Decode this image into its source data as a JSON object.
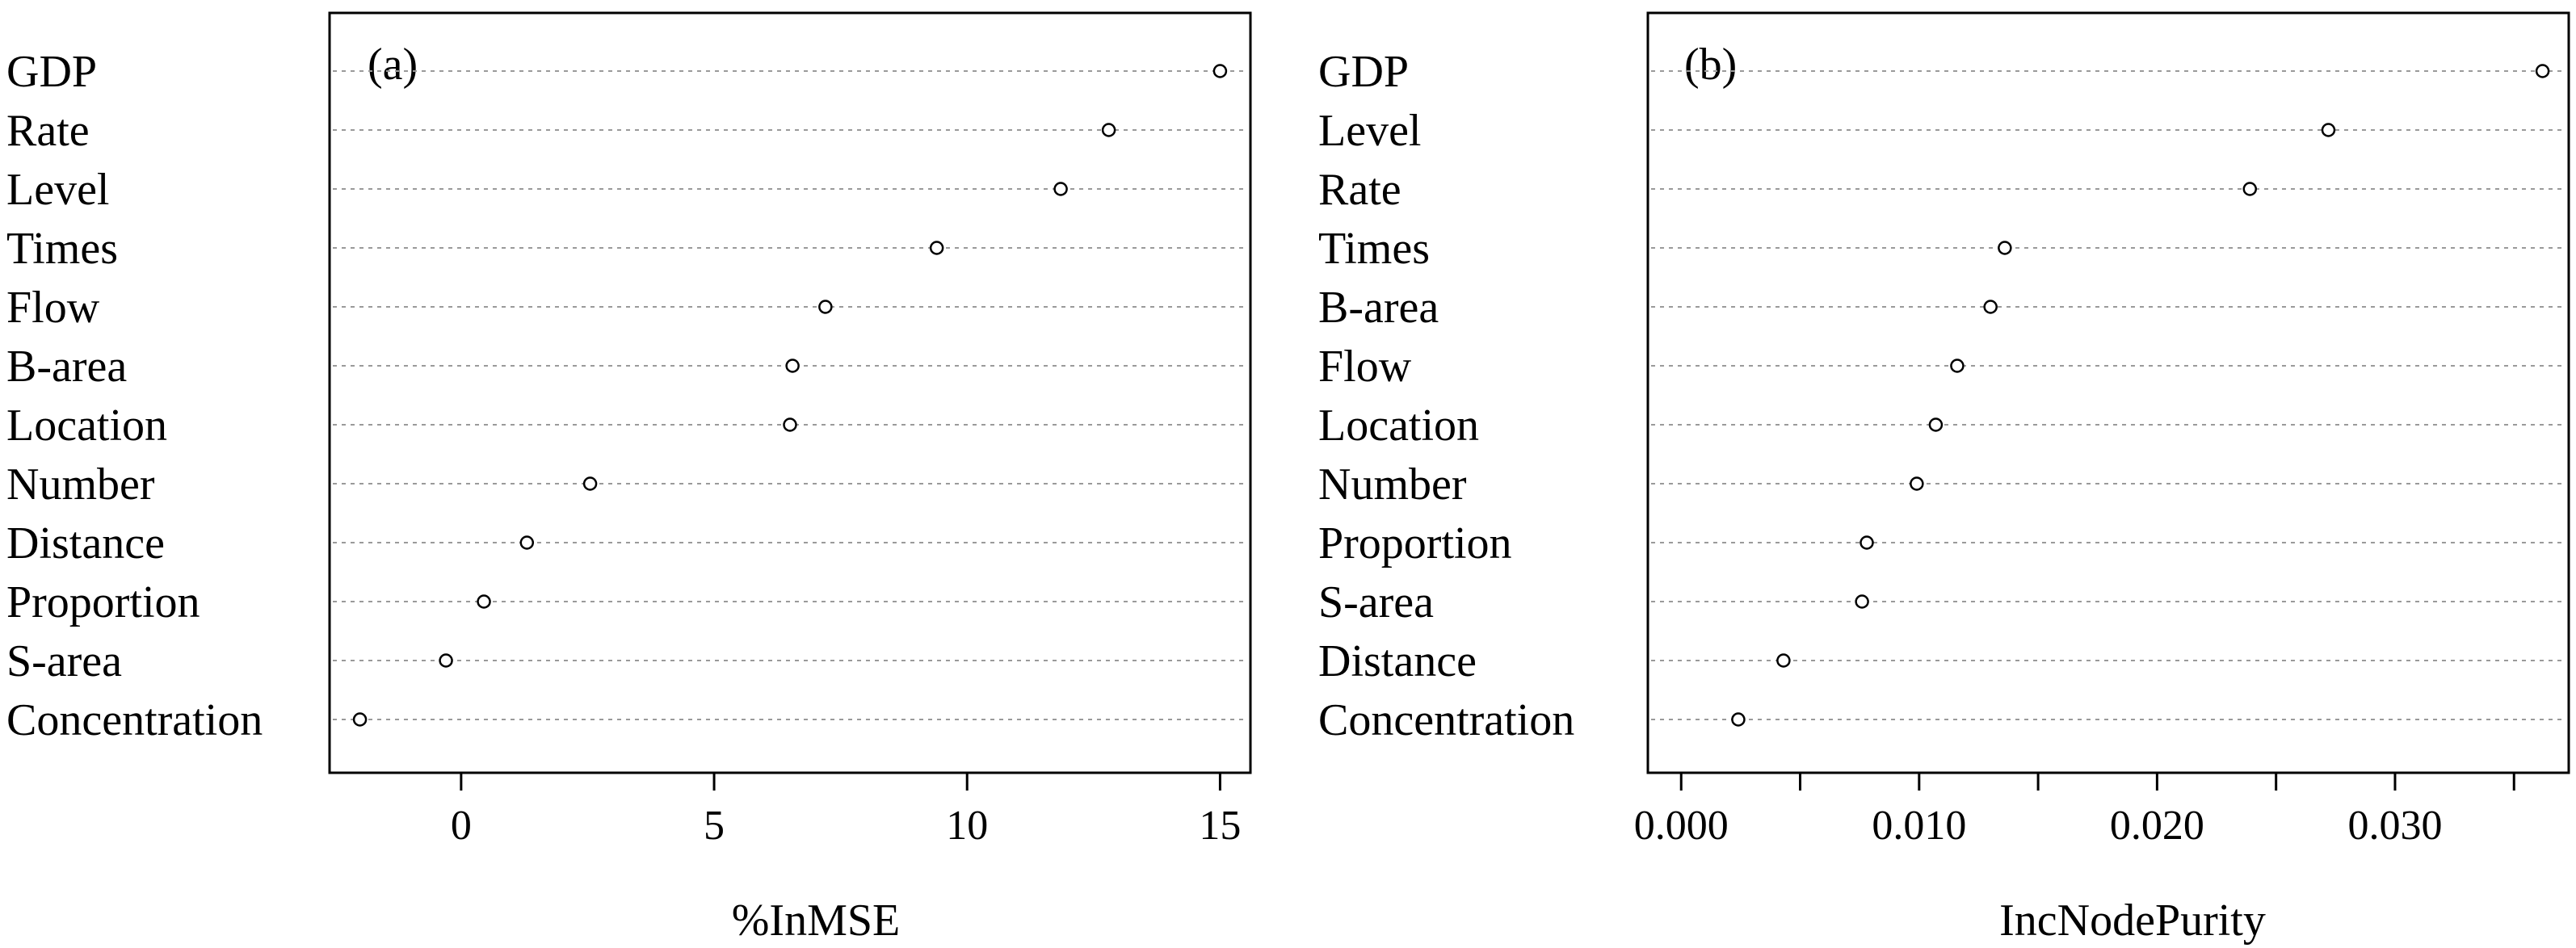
{
  "chart_data": [
    {
      "type": "scatter",
      "panel_label": "(a)",
      "xlabel": "%InMSE",
      "xlim": [
        -2.6,
        15.6
      ],
      "xticks": [
        0,
        5,
        10,
        15
      ],
      "xtick_labels": [
        "0",
        "5",
        "10",
        "15"
      ],
      "categories": [
        "GDP",
        "Rate",
        "Level",
        "Times",
        "Flow",
        "B-area",
        "Location",
        "Number",
        "Distance",
        "Proportion",
        "S-area",
        "Concentration"
      ],
      "values": [
        15.0,
        12.8,
        11.85,
        9.4,
        7.2,
        6.55,
        6.5,
        2.55,
        1.3,
        0.45,
        -0.3,
        -2.0
      ]
    },
    {
      "type": "scatter",
      "panel_label": "(b)",
      "xlabel": "IncNodePurity",
      "xlim": [
        -0.0014,
        0.0373
      ],
      "xticks": [
        0.0,
        0.005,
        0.01,
        0.015,
        0.02,
        0.025,
        0.03,
        0.035
      ],
      "xtick_labels": [
        "0.000",
        "",
        "0.010",
        "",
        "0.020",
        "",
        "0.030",
        ""
      ],
      "categories": [
        "GDP",
        "Level",
        "Rate",
        "Times",
        "B-area",
        "Flow",
        "Location",
        "Number",
        "Proportion",
        "S-area",
        "Distance",
        "Concentration"
      ],
      "values": [
        0.0362,
        0.0272,
        0.0239,
        0.0136,
        0.013,
        0.0116,
        0.0107,
        0.0099,
        0.0078,
        0.0076,
        0.0043,
        0.0024
      ]
    }
  ]
}
